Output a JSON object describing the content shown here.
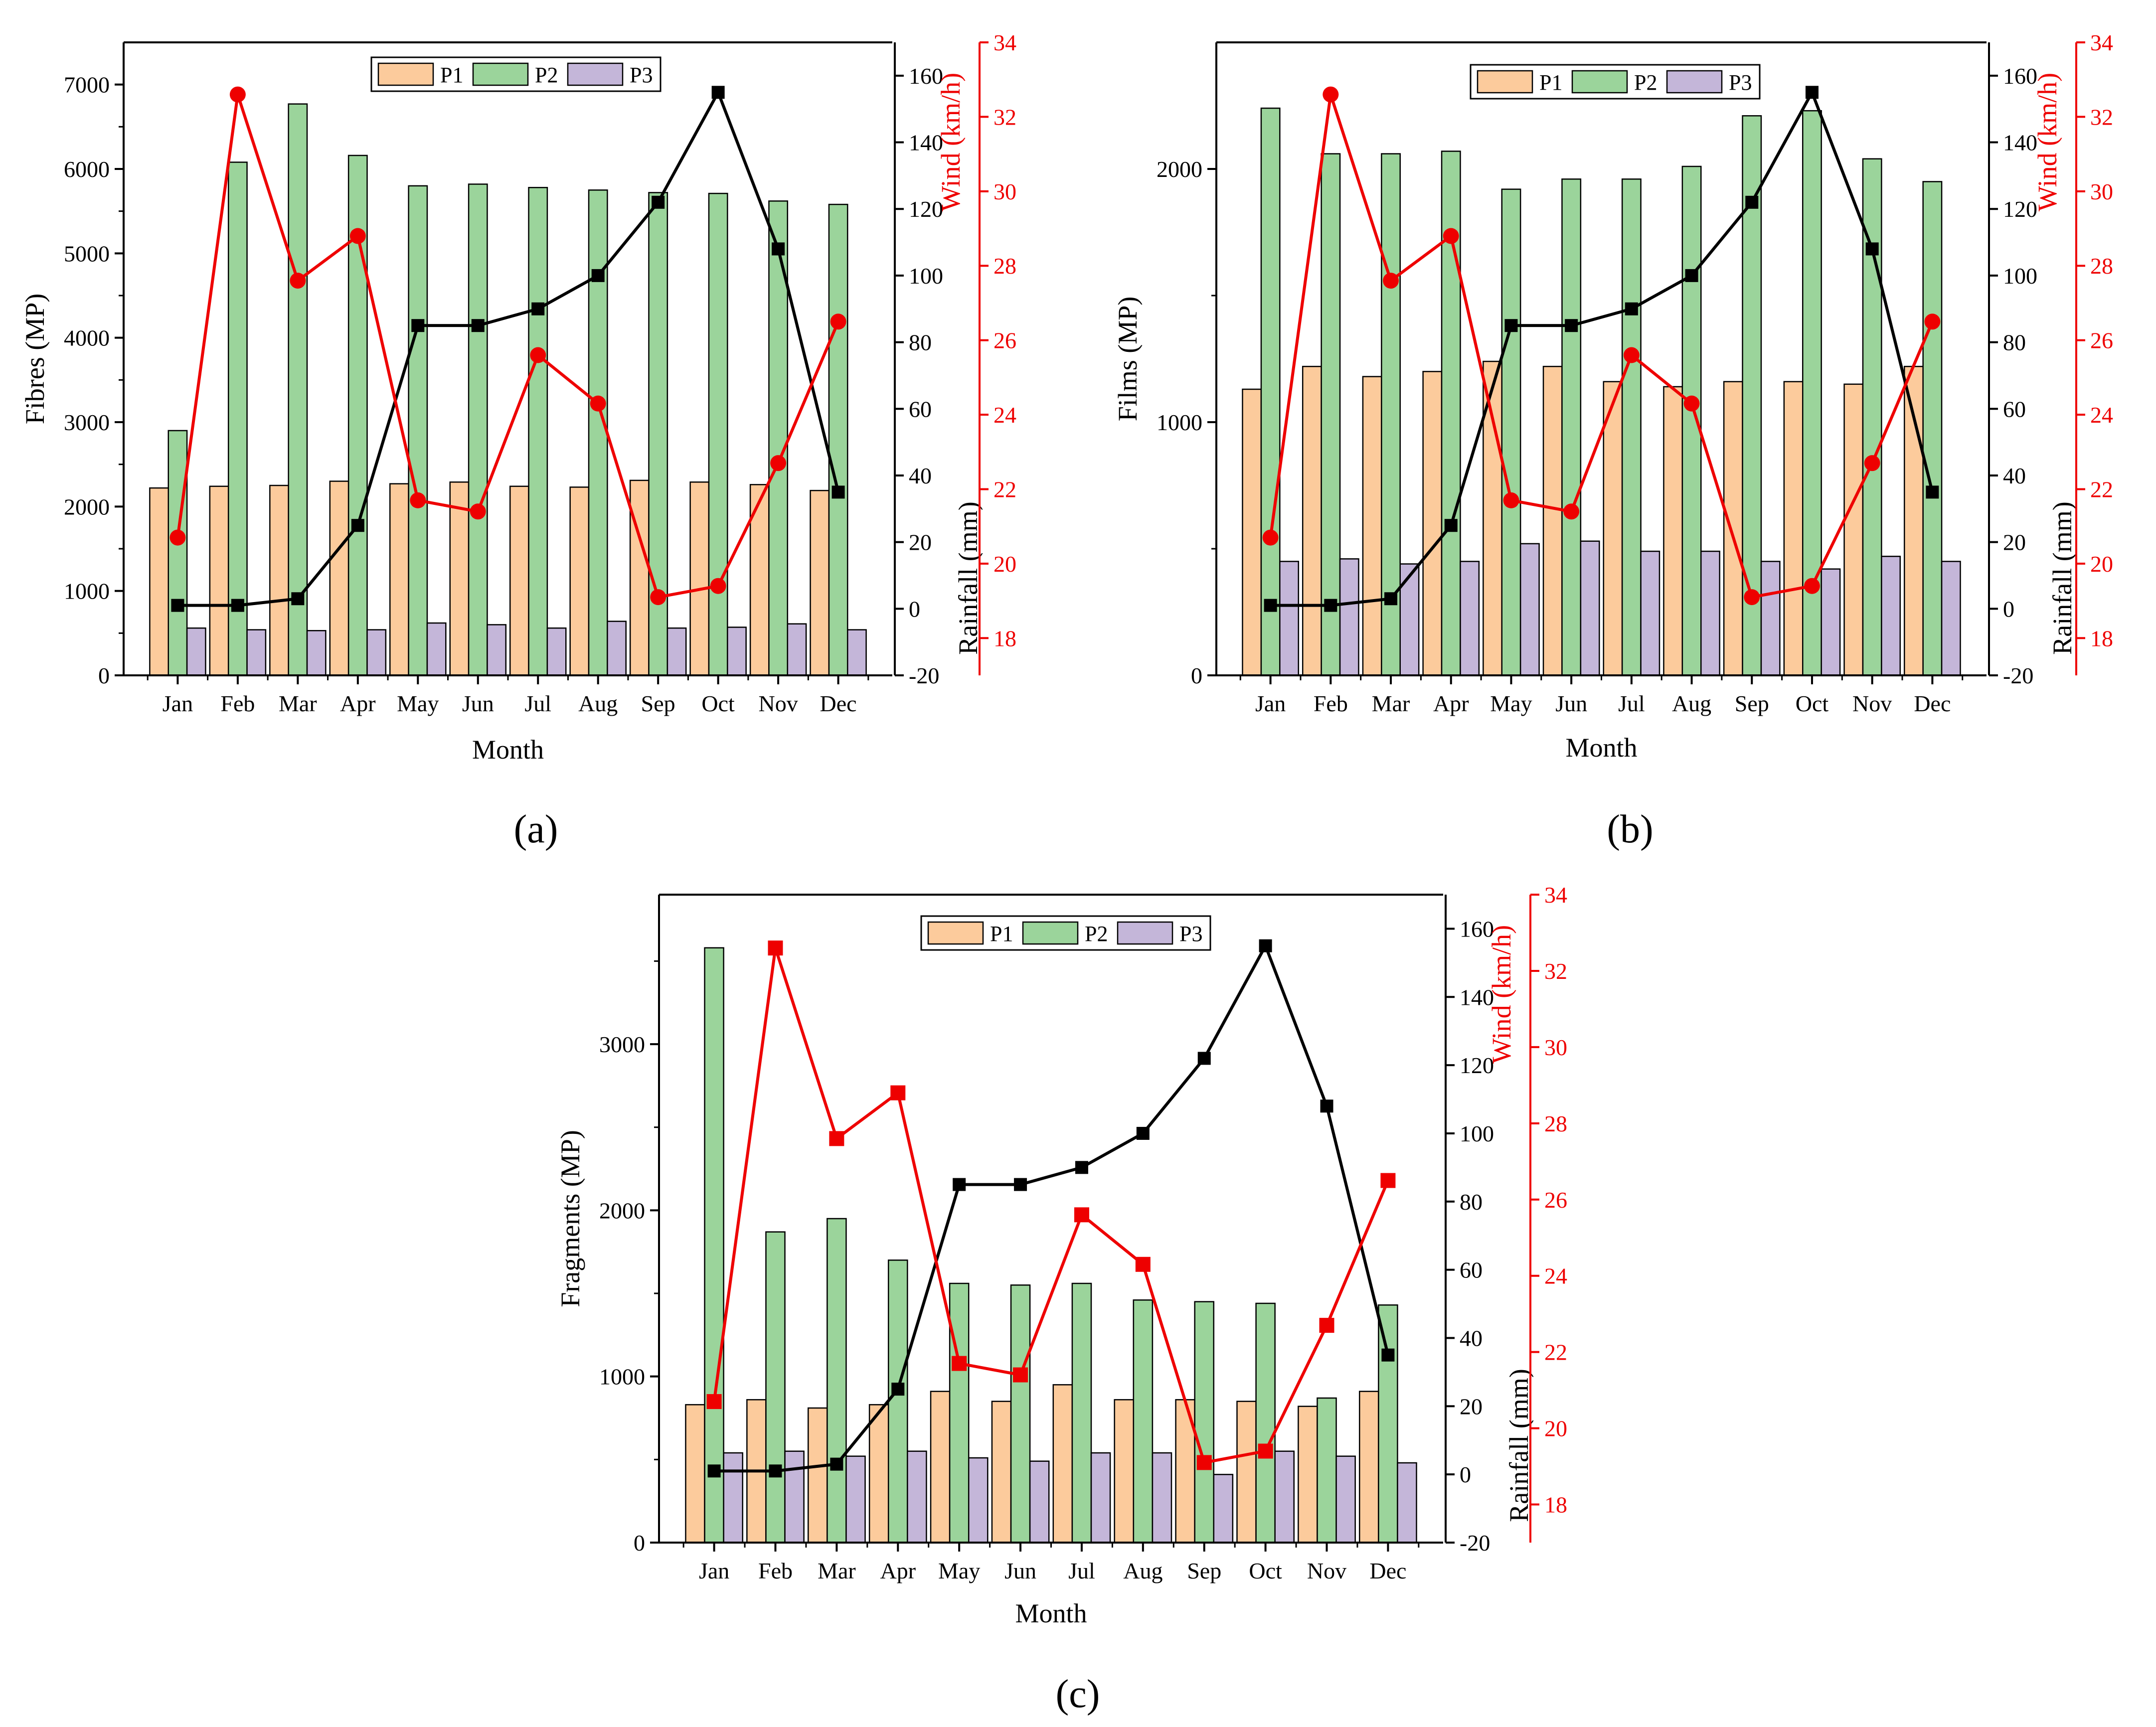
{
  "figure": {
    "panel_labels": [
      "(a)",
      "(b)",
      "(c)"
    ]
  },
  "colors": {
    "p1": "#FCCB9C",
    "p2": "#9BD49B",
    "p3": "#C4B6D9",
    "rainfall": "#000000",
    "wind": "#EE0000",
    "axis": "#000000"
  },
  "chart_data": [
    {
      "type": "bar",
      "panel": "(a)",
      "title": "",
      "xlabel": "Month",
      "ylabel": "Fibres (MP)",
      "ylim": [
        0,
        7500
      ],
      "yticks": [
        0,
        1000,
        2000,
        3000,
        4000,
        5000,
        6000,
        7000
      ],
      "categories": [
        "Jan",
        "Feb",
        "Mar",
        "Apr",
        "May",
        "Jun",
        "Jul",
        "Aug",
        "Sep",
        "Oct",
        "Nov",
        "Dec"
      ],
      "series": [
        {
          "name": "P1",
          "values": [
            2220,
            2240,
            2250,
            2300,
            2270,
            2290,
            2240,
            2230,
            2310,
            2290,
            2260,
            2190
          ]
        },
        {
          "name": "P2",
          "values": [
            2900,
            6080,
            6770,
            6160,
            5800,
            5820,
            5780,
            5750,
            5720,
            5710,
            5620,
            5580
          ]
        },
        {
          "name": "P3",
          "values": [
            560,
            540,
            530,
            540,
            620,
            600,
            560,
            640,
            560,
            570,
            610,
            540
          ]
        }
      ],
      "rainfall": {
        "axis_label": "Rainfall (mm)",
        "ylim": [
          -20,
          170
        ],
        "ticks": [
          -20,
          0,
          20,
          40,
          60,
          80,
          100,
          120,
          140,
          160
        ],
        "values": [
          1,
          1,
          3,
          25,
          85,
          85,
          90,
          100,
          122,
          155,
          108,
          35
        ]
      },
      "wind": {
        "axis_label": "Wind (km/h)",
        "ylim": [
          17,
          34
        ],
        "ticks": [
          18,
          20,
          22,
          24,
          26,
          28,
          30,
          32,
          34
        ],
        "values": [
          20.7,
          32.6,
          27.6,
          28.8,
          21.7,
          21.4,
          25.6,
          24.3,
          19.1,
          19.4,
          22.7,
          26.5
        ]
      }
    },
    {
      "type": "bar",
      "panel": "(b)",
      "title": "",
      "xlabel": "Month",
      "ylabel": "Films (MP)",
      "ylim": [
        0,
        2500
      ],
      "yticks": [
        0,
        1000,
        2000
      ],
      "categories": [
        "Jan",
        "Feb",
        "Mar",
        "Apr",
        "May",
        "Jun",
        "Jul",
        "Aug",
        "Sep",
        "Oct",
        "Nov",
        "Dec"
      ],
      "series": [
        {
          "name": "P1",
          "values": [
            1130,
            1220,
            1180,
            1200,
            1240,
            1220,
            1160,
            1140,
            1160,
            1160,
            1150,
            1220
          ]
        },
        {
          "name": "P2",
          "values": [
            2240,
            2060,
            2060,
            2070,
            1920,
            1960,
            1960,
            2010,
            2210,
            2230,
            2040,
            1950
          ]
        },
        {
          "name": "P3",
          "values": [
            450,
            460,
            440,
            450,
            520,
            530,
            490,
            490,
            450,
            420,
            470,
            450
          ]
        }
      ],
      "rainfall": {
        "axis_label": "Rainfall (mm)",
        "ylim": [
          -20,
          170
        ],
        "ticks": [
          -20,
          0,
          20,
          40,
          60,
          80,
          100,
          120,
          140,
          160
        ],
        "values": [
          1,
          1,
          3,
          25,
          85,
          85,
          90,
          100,
          122,
          155,
          108,
          35
        ]
      },
      "wind": {
        "axis_label": "Wind (km/h)",
        "ylim": [
          17,
          34
        ],
        "ticks": [
          18,
          20,
          22,
          24,
          26,
          28,
          30,
          32,
          34
        ],
        "values": [
          20.7,
          32.6,
          27.6,
          28.8,
          21.7,
          21.4,
          25.6,
          24.3,
          19.1,
          19.4,
          22.7,
          26.5
        ]
      }
    },
    {
      "type": "bar",
      "panel": "(c)",
      "title": "",
      "xlabel": "Month",
      "ylabel": "Fragments (MP)",
      "ylim": [
        0,
        3900
      ],
      "yticks": [
        0,
        1000,
        2000,
        3000
      ],
      "categories": [
        "Jan",
        "Feb",
        "Mar",
        "Apr",
        "May",
        "Jun",
        "Jul",
        "Aug",
        "Sep",
        "Oct",
        "Nov",
        "Dec"
      ],
      "series": [
        {
          "name": "P1",
          "values": [
            830,
            860,
            810,
            830,
            910,
            850,
            950,
            860,
            860,
            850,
            820,
            910
          ]
        },
        {
          "name": "P2",
          "values": [
            3580,
            1870,
            1950,
            1700,
            1560,
            1550,
            1560,
            1460,
            1450,
            1440,
            870,
            1430
          ]
        },
        {
          "name": "P3",
          "values": [
            540,
            550,
            520,
            550,
            510,
            490,
            540,
            540,
            410,
            550,
            520,
            480
          ]
        }
      ],
      "rainfall": {
        "axis_label": "Rainfall (mm)",
        "ylim": [
          -20,
          170
        ],
        "ticks": [
          -20,
          0,
          20,
          40,
          60,
          80,
          100,
          120,
          140,
          160
        ],
        "values": [
          1,
          1,
          3,
          25,
          85,
          85,
          90,
          100,
          122,
          155,
          108,
          35
        ]
      },
      "wind": {
        "axis_label": "Wind (km/h)",
        "ylim": [
          17,
          34
        ],
        "ticks": [
          18,
          20,
          22,
          24,
          26,
          28,
          30,
          32,
          34
        ],
        "values": [
          20.7,
          32.6,
          27.6,
          28.8,
          21.7,
          21.4,
          25.6,
          24.3,
          19.1,
          19.4,
          22.7,
          26.5
        ]
      }
    }
  ]
}
